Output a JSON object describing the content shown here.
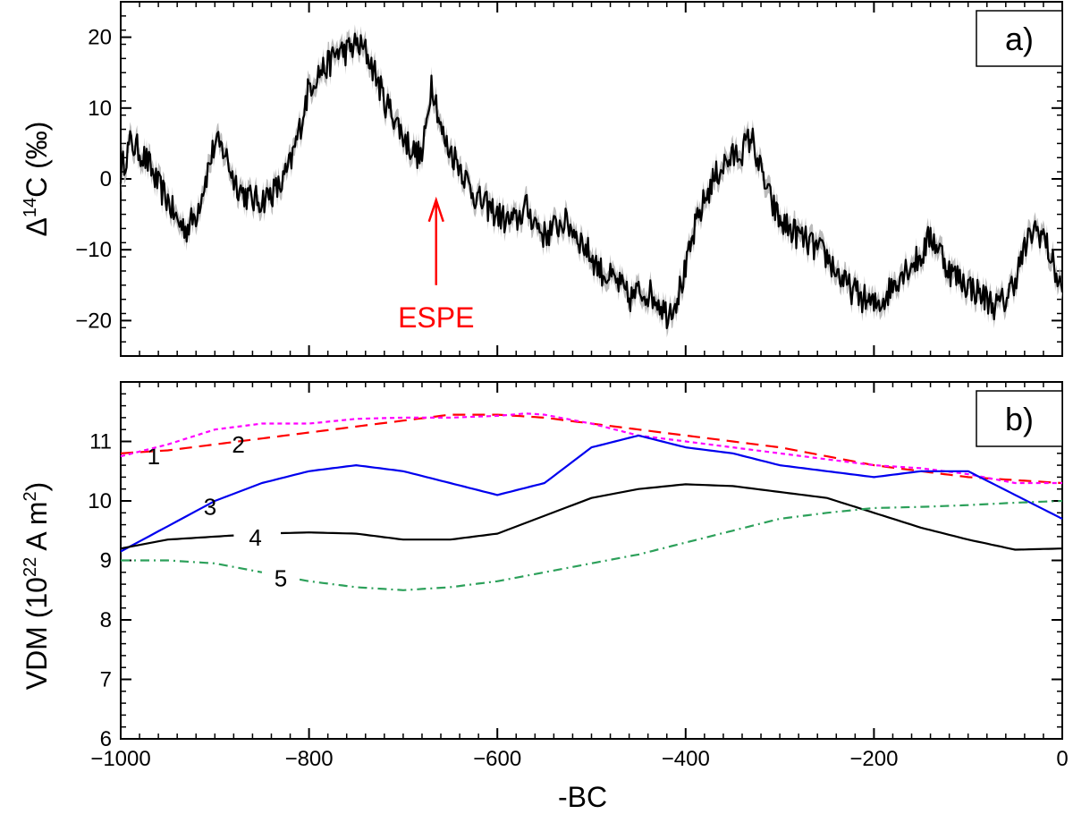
{
  "chart_data": [
    {
      "type": "line",
      "panel_label": "a)",
      "ylabel_prefix": "Δ",
      "ylabel_sup": "14",
      "ylabel_suffix": "C  (‰)",
      "xlim": [
        -1000,
        0
      ],
      "ylim": [
        -25,
        25
      ],
      "y_ticks": [
        -20,
        -10,
        0,
        10,
        20
      ],
      "y_tick_labels": [
        "−20",
        "−10",
        "0",
        "10",
        "20"
      ],
      "series": [
        {
          "name": "Δ14C",
          "color": "#000000",
          "band_color": "#b4b4b4",
          "x": [
            -1000,
            -990,
            -980,
            -970,
            -960,
            -950,
            -940,
            -930,
            -920,
            -910,
            -900,
            -890,
            -880,
            -870,
            -860,
            -850,
            -840,
            -830,
            -820,
            -810,
            -800,
            -790,
            -780,
            -770,
            -760,
            -750,
            -740,
            -730,
            -720,
            -710,
            -700,
            -690,
            -680,
            -675,
            -670,
            -665,
            -660,
            -655,
            -650,
            -640,
            -630,
            -620,
            -610,
            -600,
            -590,
            -580,
            -570,
            -560,
            -550,
            -540,
            -530,
            -520,
            -510,
            -500,
            -490,
            -480,
            -470,
            -460,
            -450,
            -440,
            -430,
            -420,
            -410,
            -400,
            -390,
            -380,
            -370,
            -360,
            -350,
            -340,
            -330,
            -320,
            -310,
            -300,
            -290,
            -280,
            -270,
            -260,
            -250,
            -240,
            -230,
            -220,
            -210,
            -200,
            -190,
            -180,
            -170,
            -160,
            -150,
            -140,
            -130,
            -120,
            -110,
            -100,
            -90,
            -80,
            -70,
            -60,
            -50,
            -40,
            -30,
            -20,
            -10,
            0
          ],
          "y": [
            1,
            5,
            4,
            2,
            -1,
            -3,
            -6,
            -7,
            -5,
            0,
            5,
            4,
            0,
            -2,
            -3,
            -3,
            -2,
            -1,
            2,
            7,
            13,
            15,
            16,
            18,
            18,
            19,
            18,
            15,
            11,
            9,
            6,
            4,
            3,
            8,
            14,
            11,
            7,
            5,
            4,
            2,
            -1,
            -3,
            -4,
            -5,
            -6,
            -6,
            -4,
            -6,
            -8,
            -7,
            -6,
            -7,
            -9,
            -11,
            -13,
            -14,
            -15,
            -17,
            -16,
            -16,
            -17,
            -19,
            -17,
            -13,
            -7,
            -3,
            0,
            2,
            3,
            4,
            6,
            1,
            -3,
            -6,
            -7,
            -8,
            -9,
            -10,
            -11,
            -13,
            -15,
            -16,
            -17,
            -18,
            -17,
            -15,
            -13,
            -12,
            -11,
            -8,
            -10,
            -13,
            -14,
            -15,
            -16,
            -17,
            -18,
            -17,
            -14,
            -10,
            -7,
            -8,
            -12,
            -16
          ]
        }
      ],
      "annotation": {
        "text": "ESPE",
        "x": -665,
        "y_tip": -3,
        "y_tail": -15,
        "color": "#ff0000"
      }
    },
    {
      "type": "line",
      "panel_label": "b)",
      "ylabel_main": "VDM (10",
      "ylabel_sup1": "22",
      "ylabel_mid": " A m",
      "ylabel_sup2": "2",
      "ylabel_end": ")",
      "xlabel": "-BC",
      "xlim": [
        -1000,
        0
      ],
      "ylim": [
        6,
        12
      ],
      "y_ticks": [
        6,
        7,
        8,
        9,
        10,
        11
      ],
      "y_tick_labels": [
        "6",
        "7",
        "8",
        "9",
        "10",
        "11"
      ],
      "x_ticks": [
        -1000,
        -800,
        -600,
        -400,
        -200,
        0
      ],
      "x_tick_labels": [
        "−1000",
        "−800",
        "−600",
        "−400",
        "−200",
        "0"
      ],
      "series": [
        {
          "name": "1",
          "color": "#ff0000",
          "dash": "14,8",
          "label_pos": [
            -965,
            10.75
          ],
          "x": [
            -1000,
            -950,
            -900,
            -850,
            -800,
            -750,
            -700,
            -650,
            -600,
            -550,
            -500,
            -450,
            -400,
            -350,
            -300,
            -250,
            -200,
            -150,
            -100,
            -50,
            0
          ],
          "y": [
            10.8,
            10.85,
            10.95,
            11.05,
            11.15,
            11.25,
            11.35,
            11.45,
            11.45,
            11.4,
            11.3,
            11.2,
            11.1,
            11.0,
            10.9,
            10.75,
            10.6,
            10.5,
            10.4,
            10.35,
            10.3
          ]
        },
        {
          "name": "2",
          "color": "#ff00ff",
          "dash": "5,4",
          "label_pos": [
            -875,
            10.95
          ],
          "x": [
            -1000,
            -950,
            -900,
            -850,
            -800,
            -750,
            -700,
            -650,
            -600,
            -570,
            -550,
            -500,
            -450,
            -400,
            -350,
            -300,
            -250,
            -200,
            -150,
            -100,
            -50,
            0
          ],
          "y": [
            10.75,
            10.95,
            11.2,
            11.3,
            11.3,
            11.38,
            11.4,
            11.4,
            11.43,
            11.47,
            11.45,
            11.3,
            11.1,
            11.0,
            10.9,
            10.8,
            10.7,
            10.6,
            10.55,
            10.45,
            10.3,
            10.3
          ]
        },
        {
          "name": "3",
          "color": "#0000ee",
          "dash": "",
          "label_pos": [
            -905,
            9.9
          ],
          "x": [
            -1000,
            -900,
            -850,
            -800,
            -750,
            -700,
            -650,
            -600,
            -550,
            -500,
            -450,
            -400,
            -350,
            -300,
            -250,
            -200,
            -150,
            -100,
            -50,
            0
          ],
          "y": [
            9.15,
            10.0,
            10.3,
            10.5,
            10.6,
            10.5,
            10.3,
            10.1,
            10.3,
            10.9,
            11.1,
            10.9,
            10.8,
            10.6,
            10.5,
            10.4,
            10.5,
            10.5,
            10.1,
            9.7
          ]
        },
        {
          "name": "4",
          "color": "#000000",
          "dash": "",
          "label_pos": [
            -857,
            9.38
          ],
          "x": [
            -1000,
            -950,
            -900,
            -850,
            -800,
            -750,
            -700,
            -650,
            -600,
            -550,
            -500,
            -450,
            -400,
            -350,
            -300,
            -250,
            -200,
            -150,
            -100,
            -50,
            0
          ],
          "y": [
            9.2,
            9.35,
            9.4,
            9.45,
            9.47,
            9.45,
            9.35,
            9.35,
            9.45,
            9.75,
            10.05,
            10.2,
            10.28,
            10.25,
            10.15,
            10.05,
            9.8,
            9.55,
            9.35,
            9.18,
            9.2
          ],
          "gap": [
            -880,
            -830
          ]
        },
        {
          "name": "5",
          "color": "#2ca05a",
          "dash": "10,5,2,5",
          "label_pos": [
            -830,
            8.7
          ],
          "x": [
            -1000,
            -950,
            -900,
            -850,
            -800,
            -750,
            -700,
            -650,
            -600,
            -550,
            -500,
            -450,
            -400,
            -350,
            -300,
            -250,
            -200,
            -150,
            -100,
            -50,
            0
          ],
          "y": [
            9.0,
            9.0,
            8.95,
            8.8,
            8.65,
            8.55,
            8.5,
            8.55,
            8.65,
            8.8,
            8.95,
            9.1,
            9.3,
            9.5,
            9.7,
            9.8,
            9.88,
            9.9,
            9.93,
            9.97,
            10.0
          ],
          "gap": [
            -850,
            -810
          ]
        }
      ]
    }
  ]
}
